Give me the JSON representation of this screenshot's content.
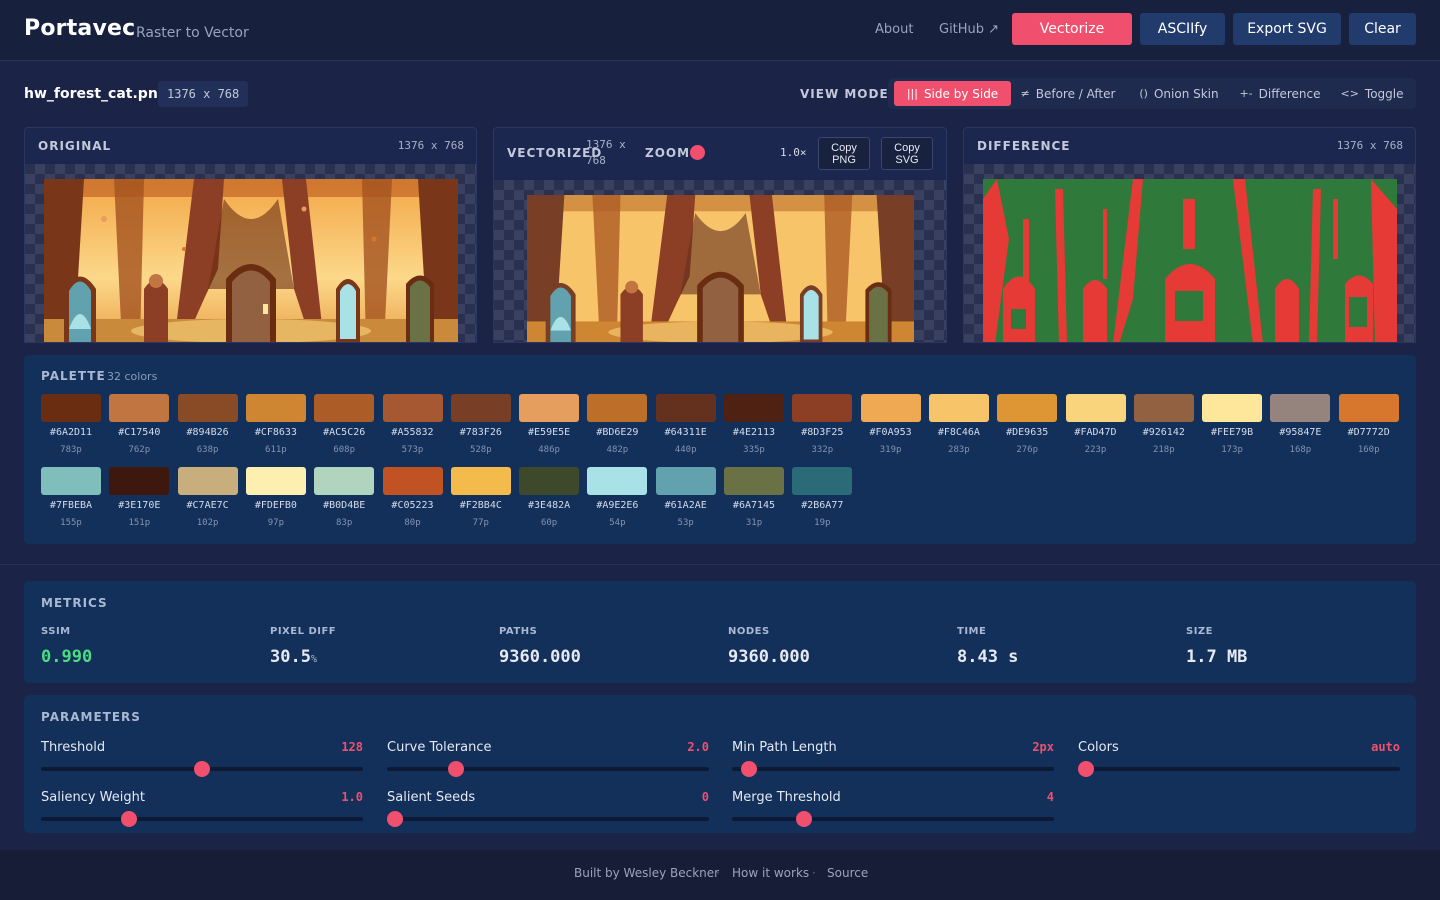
{
  "header": {
    "brand": "Portavec",
    "tagline": "Raster to Vector",
    "nav": {
      "about": "About",
      "github": "GitHub ↗"
    },
    "buttons": {
      "vectorize": "Vectorize",
      "asciify": "ASCIIfy",
      "export_svg": "Export SVG",
      "clear": "Clear"
    }
  },
  "file": {
    "name": "hw_forest_cat.png",
    "dims": "1376 x 768"
  },
  "view_mode": {
    "label": "VIEW MODE:",
    "options": [
      {
        "glyph": "|||",
        "label": "Side by Side",
        "active": true
      },
      {
        "glyph": "≠",
        "label": "Before / After",
        "active": false
      },
      {
        "glyph": "()",
        "label": "Onion Skin",
        "active": false
      },
      {
        "glyph": "+-",
        "label": "Difference",
        "active": false
      },
      {
        "glyph": "<>",
        "label": "Toggle",
        "active": false
      }
    ]
  },
  "panels": {
    "original": {
      "title": "ORIGINAL",
      "dims": "1376 x 768"
    },
    "vectorized": {
      "title": "VECTORIZED",
      "dims_line1": "1376 x",
      "dims_line2": "768",
      "zoom_label": "ZOOM",
      "zoom_value": "1.0×",
      "copy_png": "Copy PNG",
      "copy_svg": "Copy SVG"
    },
    "difference": {
      "title": "DIFFERENCE",
      "dims": "1376 x 768"
    }
  },
  "palette": {
    "title": "PALETTE",
    "count": "32 colors",
    "swatches": [
      {
        "hex": "#6A2D11",
        "count": "783p"
      },
      {
        "hex": "#C17540",
        "count": "762p"
      },
      {
        "hex": "#894B26",
        "count": "638p"
      },
      {
        "hex": "#CF8633",
        "count": "611p"
      },
      {
        "hex": "#AC5C26",
        "count": "608p"
      },
      {
        "hex": "#A55832",
        "count": "573p"
      },
      {
        "hex": "#783F26",
        "count": "528p"
      },
      {
        "hex": "#E59E5E",
        "count": "486p"
      },
      {
        "hex": "#BD6E29",
        "count": "482p"
      },
      {
        "hex": "#64311E",
        "count": "440p"
      },
      {
        "hex": "#4E2113",
        "count": "335p"
      },
      {
        "hex": "#8D3F25",
        "count": "332p"
      },
      {
        "hex": "#F0A953",
        "count": "319p"
      },
      {
        "hex": "#F8C46A",
        "count": "283p"
      },
      {
        "hex": "#DE9635",
        "count": "276p"
      },
      {
        "hex": "#FAD47D",
        "count": "223p"
      },
      {
        "hex": "#926142",
        "count": "218p"
      },
      {
        "hex": "#FEE79B",
        "count": "173p"
      },
      {
        "hex": "#95847E",
        "count": "168p"
      },
      {
        "hex": "#D7772D",
        "count": "160p"
      },
      {
        "hex": "#7FBEBA",
        "count": "155p"
      },
      {
        "hex": "#3E170E",
        "count": "151p"
      },
      {
        "hex": "#C7AE7C",
        "count": "102p"
      },
      {
        "hex": "#FDEFB0",
        "count": "97p"
      },
      {
        "hex": "#B0D4BE",
        "count": "83p"
      },
      {
        "hex": "#C05223",
        "count": "80p"
      },
      {
        "hex": "#F2BB4C",
        "count": "77p"
      },
      {
        "hex": "#3E482A",
        "count": "60p"
      },
      {
        "hex": "#A9E2E6",
        "count": "54p"
      },
      {
        "hex": "#61A2AE",
        "count": "53p"
      },
      {
        "hex": "#6A7145",
        "count": "31p"
      },
      {
        "hex": "#2B6A77",
        "count": "19p"
      }
    ]
  },
  "metrics": {
    "title": "METRICS",
    "ssim": {
      "label": "SSIM",
      "value": "0.990"
    },
    "pixel_diff": {
      "label": "PIXEL DIFF",
      "value": "30.5",
      "unit": "%"
    },
    "paths": {
      "label": "PATHS",
      "value": "9360.000"
    },
    "nodes": {
      "label": "NODES",
      "value": "9360.000"
    },
    "time": {
      "label": "TIME",
      "value": "8.43 s"
    },
    "size": {
      "label": "SIZE",
      "value": "1.7 MB"
    }
  },
  "parameters": {
    "title": "PARAMETERS",
    "items": [
      {
        "label": "Threshold",
        "value": "128",
        "fraction": 0.5
      },
      {
        "label": "Curve Tolerance",
        "value": "2.0",
        "fraction": 0.2
      },
      {
        "label": "Min Path Length",
        "value": "2px",
        "fraction": 0.03
      },
      {
        "label": "Colors",
        "value": "auto",
        "fraction": 0.0
      },
      {
        "label": "Saliency Weight",
        "value": "1.0",
        "fraction": 0.26
      },
      {
        "label": "Salient Seeds",
        "value": "0",
        "fraction": 0.0
      },
      {
        "label": "Merge Threshold",
        "value": "4",
        "fraction": 0.21
      }
    ]
  },
  "footer": {
    "built_by": "Built by Wesley Beckner",
    "how": "How it works",
    "source": "Source"
  }
}
